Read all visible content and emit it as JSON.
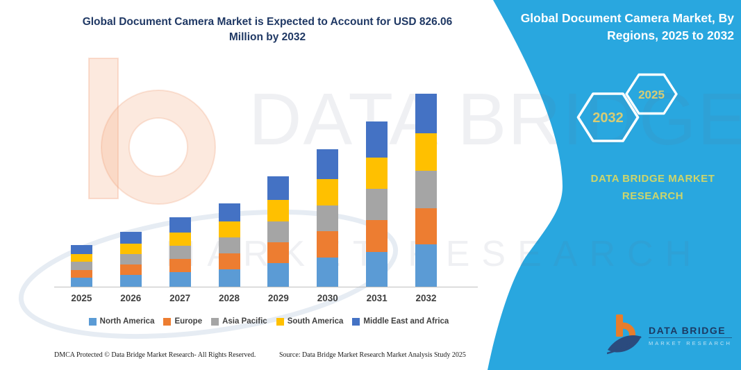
{
  "main_title": {
    "line1": "Global Document Camera Market is Expected to Account for USD 826.06",
    "line2": "Million by 2032",
    "color": "#1F3864"
  },
  "right_panel": {
    "background_color": "#29A7DF",
    "title_line1": "Global Document Camera Market, By",
    "title_line2": "Regions, 2025 to 2032",
    "hexagon_left_year": "2032",
    "hexagon_right_year": "2025",
    "hexagon_text_color": "#D8CC74",
    "brand_caption": "DATA BRIDGE MARKET RESEARCH",
    "brand_caption_color": "#CDD56B"
  },
  "watermark": {
    "big_text": "DATA BRIDGE",
    "sub_text": "MARKET RESEARCH"
  },
  "footer": {
    "dmca_text": "DMCA Protected © Data Bridge Market Research-  All Rights Reserved.",
    "source_text": "Source: Data Bridge Market Research  Market Analysis Study 2025"
  },
  "logo": {
    "name": "DATA BRIDGE",
    "subtitle": "MARKET RESEARCH"
  },
  "chart_data": {
    "type": "bar",
    "stacked": true,
    "title": "Global Document Camera Market, By Regions, 2025 to 2032",
    "unit": "USD Million",
    "categories": [
      "2025",
      "2026",
      "2027",
      "2028",
      "2029",
      "2030",
      "2031",
      "2032"
    ],
    "series": [
      {
        "name": "North America",
        "color": "#5B9BD5",
        "values": [
          38,
          50,
          63,
          75,
          100,
          125,
          150,
          182
        ]
      },
      {
        "name": "Europe",
        "color": "#ED7D31",
        "values": [
          34,
          45,
          56,
          68,
          90,
          112,
          134,
          155
        ]
      },
      {
        "name": "Asia Pacific",
        "color": "#A5A5A5",
        "values": [
          34,
          45,
          57,
          68,
          90,
          112,
          134,
          158
        ]
      },
      {
        "name": "South America",
        "color": "#FFC000",
        "values": [
          34,
          45,
          57,
          68,
          91,
          112,
          135,
          163
        ]
      },
      {
        "name": "Middle East and Africa",
        "color": "#4472C4",
        "values": [
          38,
          50,
          64,
          78,
          102,
          127,
          154,
          168
        ]
      }
    ],
    "totals_by_year": [
      178,
      235,
      297,
      357,
      473,
      588,
      707,
      826.06
    ],
    "xlabel": "",
    "ylabel": "",
    "y_axis_visible": false,
    "grid": false,
    "legend_position": "bottom"
  }
}
